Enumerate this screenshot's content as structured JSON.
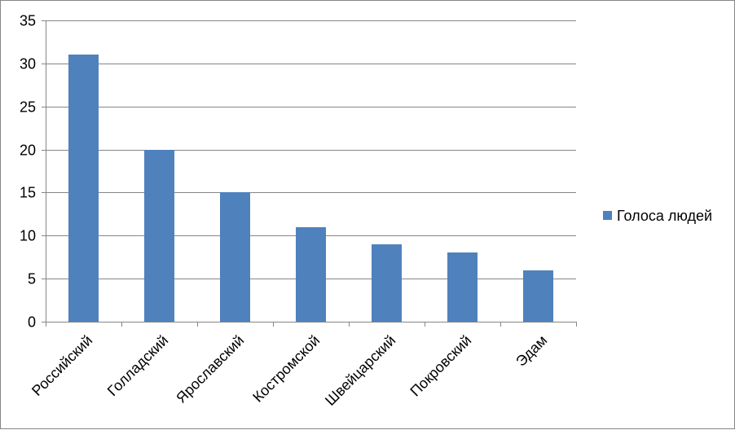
{
  "chart_data": {
    "type": "bar",
    "categories": [
      "Российский",
      "Голладский",
      "Ярославский",
      "Костромской",
      "Швейцарский",
      "Покровский",
      "Эдам"
    ],
    "series": [
      {
        "name": "Голоса людей",
        "values": [
          31,
          20,
          15,
          11,
          9,
          8,
          6
        ],
        "color": "#4f81bd"
      }
    ],
    "title": "",
    "xlabel": "",
    "ylabel": "",
    "ylim": [
      0,
      35
    ],
    "yticks": [
      0,
      5,
      10,
      15,
      20,
      25,
      30,
      35
    ],
    "grid": true,
    "legend_position": "right"
  }
}
